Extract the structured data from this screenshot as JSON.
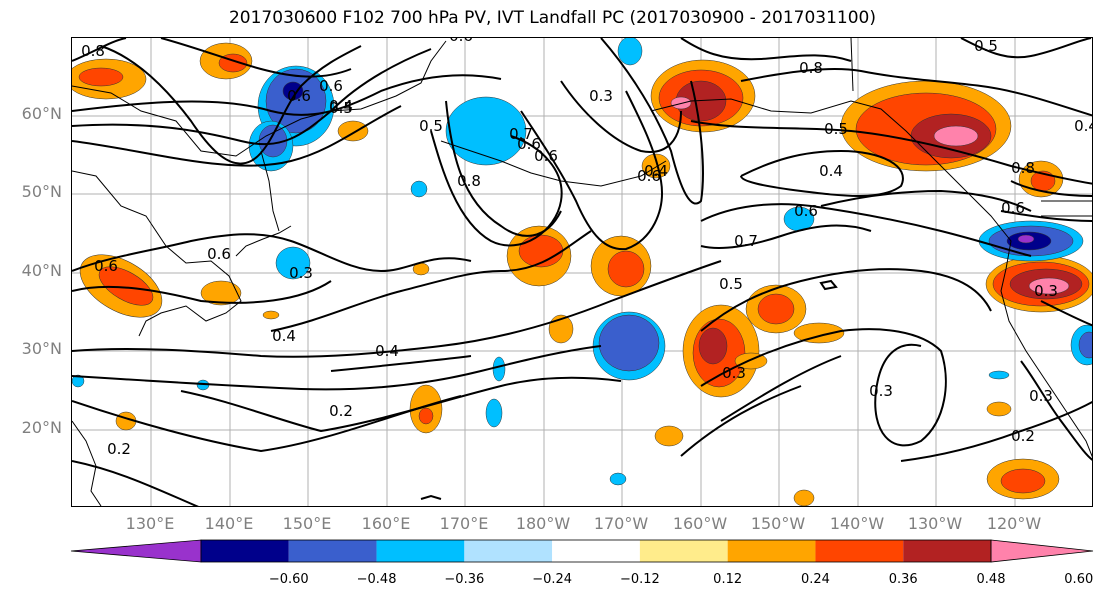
{
  "title": "2017030600 F102 700 hPa PV, IVT Landfall PC (2017030900 - 2017031100)",
  "latitude_labels": [
    "60°N",
    "50°N",
    "40°N",
    "30°N",
    "20°N"
  ],
  "longitude_labels": [
    "130°E",
    "140°E",
    "150°E",
    "160°E",
    "170°E",
    "180°W",
    "170°W",
    "160°W",
    "150°W",
    "140°W",
    "130°W",
    "120°W"
  ],
  "contour_labels": [
    "0.8",
    "0.6",
    "0.5",
    "0.6",
    "0.5",
    "0.4",
    "0.7",
    "0.6",
    "0.8",
    "0.6",
    "0.8",
    "0.5",
    "0.5",
    "0.4",
    "0.6",
    "0.7",
    "0.8",
    "0.6",
    "0.6",
    "0.3",
    "0.3",
    "0.4",
    "0.4",
    "0.2",
    "0.5",
    "0.3",
    "0.4",
    "0.3",
    "0.3",
    "0.2",
    "0.2",
    "0.6",
    "0.6",
    "0.3",
    "0.4",
    "0.6"
  ],
  "colorbar": {
    "ticks": [
      "−0.60",
      "−0.48",
      "−0.36",
      "−0.24",
      "−0.12",
      "0.12",
      "0.24",
      "0.36",
      "0.48",
      "0.60"
    ],
    "colors": [
      "#9932cc",
      "#00008b",
      "#3a5fcd",
      "#00bfff",
      "#b0e2ff",
      "#ffffff",
      "#ffec8b",
      "#ffa500",
      "#ff4500",
      "#b22222",
      "#ff82ab"
    ]
  },
  "chart_data": {
    "type": "heatmap",
    "field": "700 hPa PV contours with IVT landfall PC shading",
    "colorbar_levels": [
      -0.6,
      -0.48,
      -0.36,
      -0.24,
      -0.12,
      0.12,
      0.24,
      0.36,
      0.48,
      0.6
    ],
    "xlabel": "",
    "ylabel": ""
  }
}
